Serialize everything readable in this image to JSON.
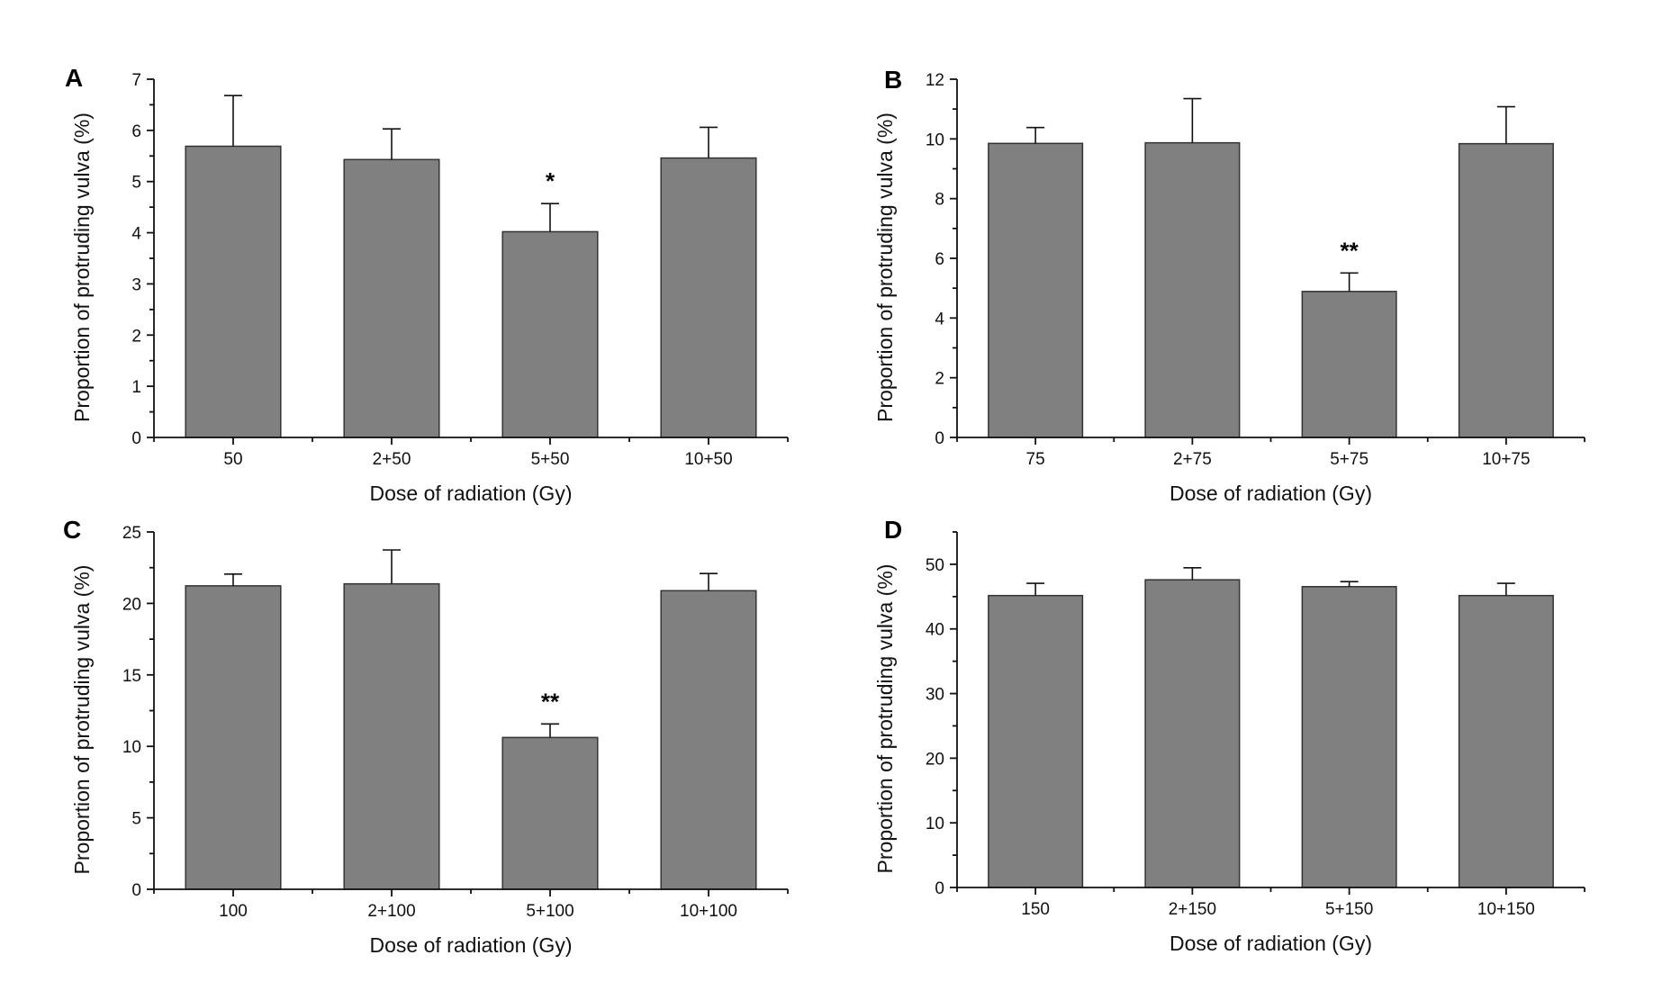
{
  "chart_data": [
    {
      "type": "bar",
      "panel": "A",
      "categories": [
        "50",
        "2+50",
        "5+50",
        "10+50"
      ],
      "values": [
        5.69,
        5.43,
        4.02,
        5.46
      ],
      "error_upper": [
        6.68,
        6.03,
        4.57,
        6.06
      ],
      "significance": [
        "",
        "",
        "*",
        ""
      ],
      "xlabel": "Dose of radiation (Gy)",
      "ylabel": "Proportion of protruding vulva (%)",
      "ylim": [
        0,
        7
      ],
      "yticks": [
        0,
        1,
        2,
        3,
        4,
        5,
        6,
        7
      ],
      "yminor": 0.5,
      "grid": false
    },
    {
      "type": "bar",
      "panel": "B",
      "categories": [
        "75",
        "2+75",
        "5+75",
        "10+75"
      ],
      "values": [
        9.85,
        9.87,
        4.89,
        9.84
      ],
      "error_upper": [
        10.38,
        11.35,
        5.51,
        11.08
      ],
      "significance": [
        "",
        "",
        "**",
        ""
      ],
      "xlabel": "Dose of radiation (Gy)",
      "ylabel": "Proportion of protruding vulva (%)",
      "ylim": [
        0,
        12
      ],
      "yticks": [
        0,
        2,
        4,
        6,
        8,
        10,
        12
      ],
      "yminor": 1,
      "grid": false
    },
    {
      "type": "bar",
      "panel": "C",
      "categories": [
        "100",
        "2+100",
        "5+100",
        "10+100"
      ],
      "values": [
        21.23,
        21.37,
        10.62,
        20.89
      ],
      "error_upper": [
        22.05,
        23.74,
        11.57,
        22.09
      ],
      "significance": [
        "",
        "",
        "**",
        ""
      ],
      "xlabel": "Dose of radiation (Gy)",
      "ylabel": "Proportion of protruding vulva (%)",
      "ylim": [
        0,
        25
      ],
      "yticks": [
        0,
        5,
        10,
        15,
        20,
        25
      ],
      "yminor": 2.5,
      "grid": false
    },
    {
      "type": "bar",
      "panel": "D",
      "categories": [
        "150",
        "2+150",
        "5+150",
        "10+150"
      ],
      "values": [
        45.16,
        47.6,
        46.54,
        45.16
      ],
      "error_upper": [
        47.05,
        49.45,
        47.32,
        47.05
      ],
      "significance": [
        "",
        "",
        "",
        ""
      ],
      "xlabel": "Dose of radiation (Gy)",
      "ylabel": "Proportion of protruding vulva (%)",
      "ylim": [
        0,
        55
      ],
      "yticks": [
        0,
        10,
        20,
        30,
        40,
        50
      ],
      "yminor": 5,
      "grid": false
    }
  ],
  "colors": {
    "bar_fill": "#808080",
    "bar_stroke": "#333333",
    "axis": "#111111"
  }
}
